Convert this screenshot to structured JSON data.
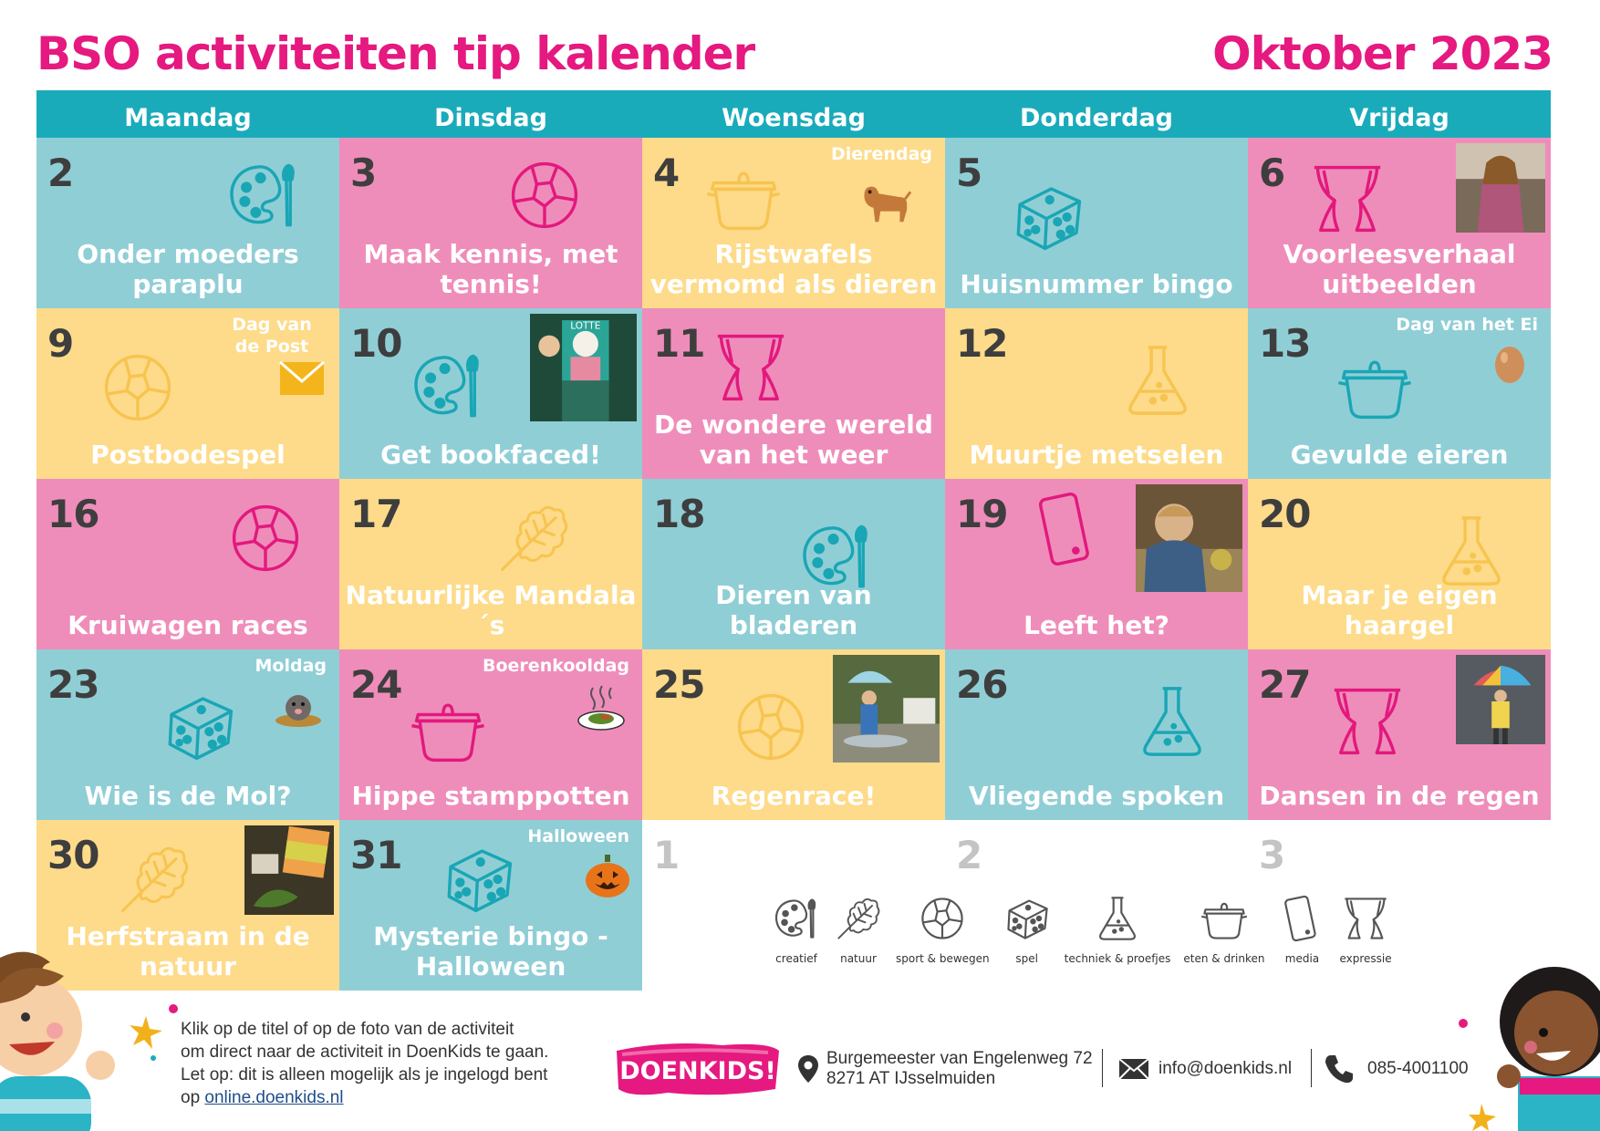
{
  "header": {
    "title": "BSO activiteiten tip kalender",
    "month": "Oktober 2023"
  },
  "weekdays": [
    "Maandag",
    "Dinsdag",
    "Woensdag",
    "Donderdag",
    "Vrijdag"
  ],
  "colors": {
    "accent": "#e5197f",
    "header_bar": "#1aabbb",
    "blue": "#90ced6",
    "pink": "#ef8dba",
    "yellow": "#fddb8a",
    "icon_blue": "#19a6b5",
    "icon_pink": "#e2197d",
    "icon_yellow": "#f7c450"
  },
  "weeks": [
    [
      {
        "day": "2",
        "title": "Onder moeders paraplu",
        "color": "blue",
        "icon": "palette-icon"
      },
      {
        "day": "3",
        "title": "Maak kennis, met tennis!",
        "color": "pink",
        "icon": "ball-icon"
      },
      {
        "day": "4",
        "title": "Rijstwafels vermomd als dieren",
        "color": "yellow",
        "icon": "pot-icon",
        "tag": "Dierendag"
      },
      {
        "day": "5",
        "title": "Huisnummer bingo",
        "color": "blue",
        "icon": "dice-icon"
      },
      {
        "day": "6",
        "title": "Voorleesverhaal uitbeelden",
        "color": "pink",
        "icon": "curtains-icon"
      }
    ],
    [
      {
        "day": "9",
        "title": "Postbodespel",
        "color": "yellow",
        "icon": "ball-icon",
        "tag": "Dag van de Post"
      },
      {
        "day": "10",
        "title": "Get bookfaced!",
        "color": "blue",
        "icon": "palette-icon"
      },
      {
        "day": "11",
        "title": "De wondere wereld van het weer",
        "color": "pink",
        "icon": "curtains-icon"
      },
      {
        "day": "12",
        "title": "Muurtje metselen",
        "color": "yellow",
        "icon": "flask-icon"
      },
      {
        "day": "13",
        "title": "Gevulde eieren",
        "color": "blue",
        "icon": "pot-icon",
        "tag": "Dag van het Ei"
      }
    ],
    [
      {
        "day": "16",
        "title": "Kruiwagen races",
        "color": "pink",
        "icon": "ball-icon"
      },
      {
        "day": "17",
        "title": "Natuurlijke Mandala´s",
        "color": "yellow",
        "icon": "leaf-icon"
      },
      {
        "day": "18",
        "title": "Dieren van bladeren",
        "color": "blue",
        "icon": "palette-icon"
      },
      {
        "day": "19",
        "title": "Leeft het?",
        "color": "pink",
        "icon": "phone-icon"
      },
      {
        "day": "20",
        "title": "Maar je eigen haargel",
        "color": "yellow",
        "icon": "flask-icon"
      }
    ],
    [
      {
        "day": "23",
        "title": "Wie is de Mol?",
        "color": "blue",
        "icon": "dice-icon",
        "tag": "Moldag"
      },
      {
        "day": "24",
        "title": "Hippe stamppotten",
        "color": "pink",
        "icon": "pot-icon",
        "tag": "Boerenkooldag"
      },
      {
        "day": "25",
        "title": "Regenrace!",
        "color": "yellow",
        "icon": "ball-icon"
      },
      {
        "day": "26",
        "title": "Vliegende spoken",
        "color": "blue",
        "icon": "flask-icon"
      },
      {
        "day": "27",
        "title": "Dansen in de regen",
        "color": "pink",
        "icon": "curtains-icon"
      }
    ],
    [
      {
        "day": "30",
        "title": "Herfstraam in de natuur",
        "color": "yellow",
        "icon": "leaf-icon"
      },
      {
        "day": "31",
        "title": "Mysterie bingo - Halloween",
        "color": "blue",
        "icon": "dice-icon",
        "tag": "Halloween"
      },
      {
        "day": "1",
        "title": "",
        "color": "empty"
      },
      {
        "day": "2",
        "title": "",
        "color": "empty"
      },
      {
        "day": "3",
        "title": "",
        "color": "empty"
      }
    ]
  ],
  "legend": [
    {
      "label": "creatief",
      "icon": "palette-icon"
    },
    {
      "label": "natuur",
      "icon": "leaf-icon"
    },
    {
      "label": "sport & bewegen",
      "icon": "ball-icon"
    },
    {
      "label": "spel",
      "icon": "dice-icon"
    },
    {
      "label": "techniek & proefjes",
      "icon": "flask-icon"
    },
    {
      "label": "eten & drinken",
      "icon": "pot-icon"
    },
    {
      "label": "media",
      "icon": "phone-icon"
    },
    {
      "label": "expressie",
      "icon": "curtains-icon"
    }
  ],
  "footer": {
    "instructions_1": "Klik op de titel of op de foto van de activiteit",
    "instructions_2": "om direct naar de activiteit in DoenKids te gaan.",
    "instructions_3": "Let op: dit is alleen mogelijk als je ingelogd bent",
    "instructions_4_prefix": "op ",
    "link": "online.doenkids.nl",
    "logo_text": "DOENKIDS!",
    "address_line1": "Burgemeester van Engelenweg 72",
    "address_line2": "8271 AT IJsselmuiden",
    "email": "info@doenkids.nl",
    "phone": "085-4001100"
  }
}
